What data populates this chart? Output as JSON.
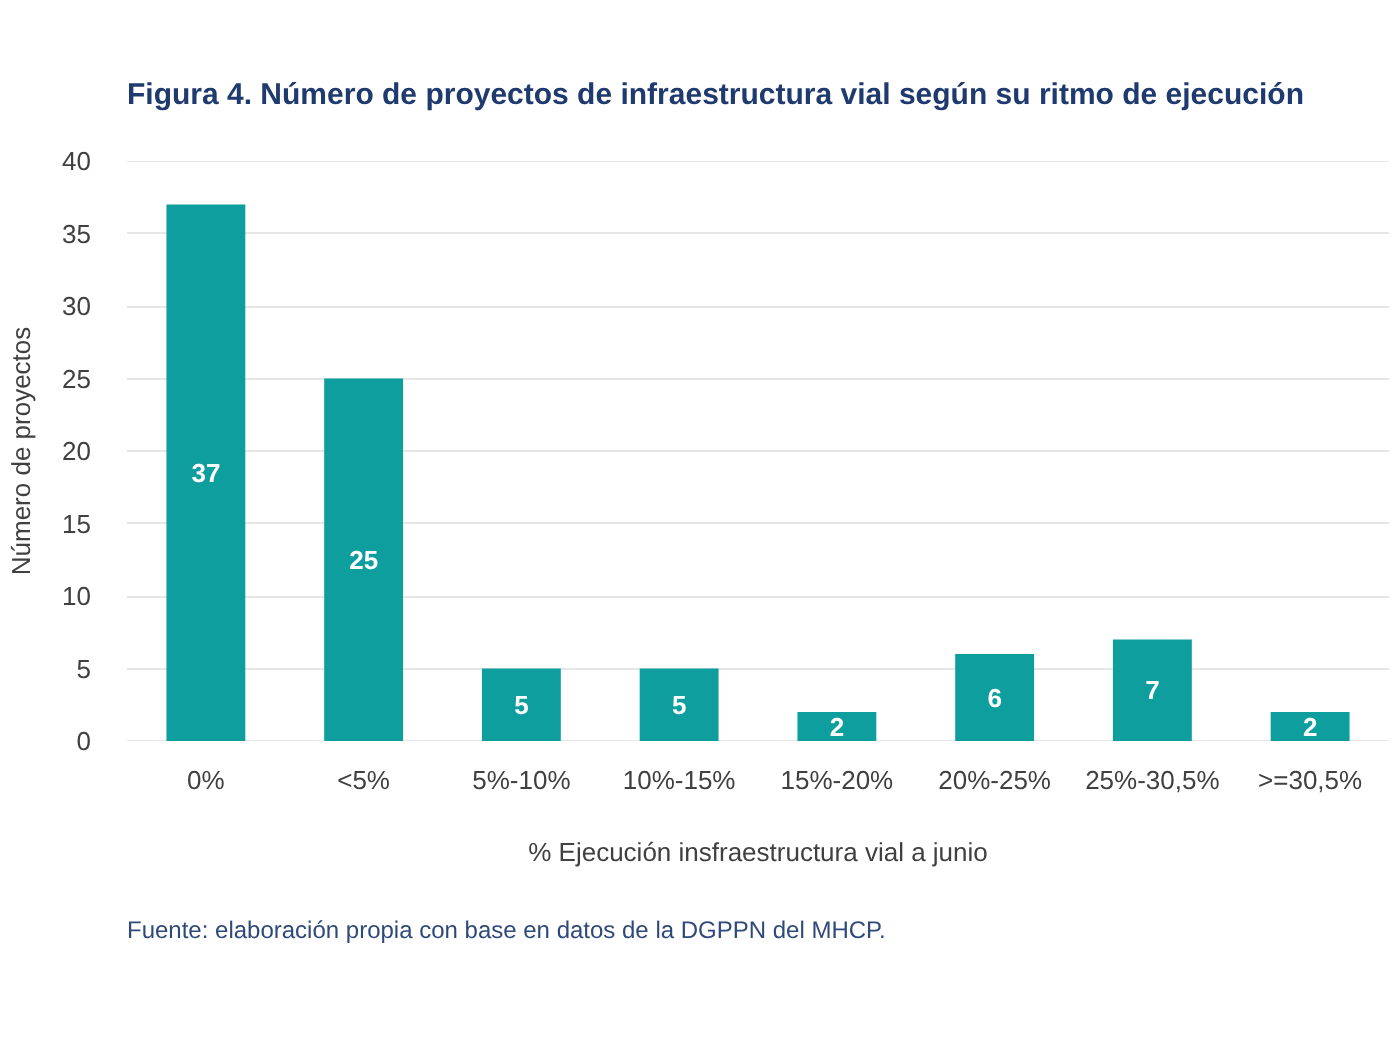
{
  "chart_data": {
    "type": "bar",
    "title": "Figura 4. Número de proyectos de infraestructura vial según su ritmo de ejecución",
    "xlabel": "% Ejecución insfraestructura vial a junio",
    "ylabel": "Número de proyectos",
    "categories": [
      "0%",
      "<5%",
      "5%-10%",
      "10%-15%",
      "15%-20%",
      "20%-25%",
      "25%-30,5%",
      ">=30,5%"
    ],
    "values": [
      37,
      25,
      5,
      5,
      2,
      6,
      7,
      2
    ],
    "color": "#0e9e9e",
    "ylim": [
      0,
      40
    ],
    "yticks": [
      0,
      5,
      10,
      15,
      20,
      25,
      30,
      35,
      40
    ],
    "grid": "y",
    "data_labels": true,
    "annotations": [
      "Fuente: elaboración propia con base en datos de la DGPPN del MHCP."
    ]
  }
}
